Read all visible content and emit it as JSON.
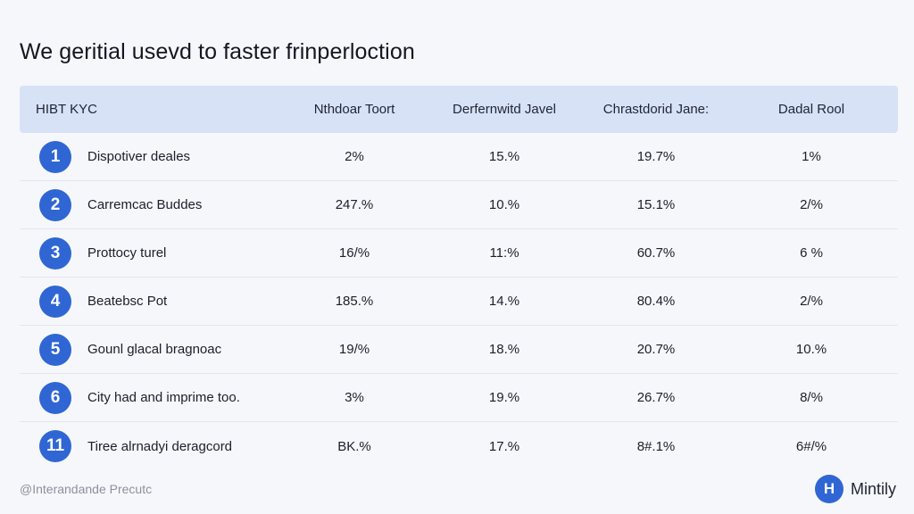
{
  "page": {
    "title": "We geritial usevd to faster frinperloction"
  },
  "table": {
    "headers": [
      "HIBT KYC",
      "Nthdoar Toort",
      "Derfernwitd Javel",
      "Chrastdorid Jane:",
      "Dadal Rool"
    ],
    "rows": [
      {
        "num": "1",
        "label": "Dispotiver deales",
        "cells": [
          "2%",
          "15.%",
          "19.7%",
          "1%"
        ]
      },
      {
        "num": "2",
        "label": "Carremcac Buddes",
        "cells": [
          "247.%",
          "10.%",
          "15.1%",
          "2/%"
        ]
      },
      {
        "num": "3",
        "label": "Prottocy turel",
        "cells": [
          "16/%",
          "11:%",
          "60.7%",
          "6 %"
        ]
      },
      {
        "num": "4",
        "label": "Beatebsc Pot",
        "cells": [
          "185.%",
          "14.%",
          "80.4%",
          "2/%"
        ]
      },
      {
        "num": "5",
        "label": "Gounl glacal bragnoac",
        "cells": [
          "19/%",
          "18.%",
          "20.7%",
          "10.%"
        ]
      },
      {
        "num": "6",
        "label": "City had and imprime too.",
        "cells": [
          "3%",
          "19.%",
          "26.7%",
          "8/%"
        ]
      },
      {
        "num": "11",
        "label": "Tiree alrnadyi deragcord",
        "cells": [
          "BK.%",
          "17.%",
          "8#.1%",
          "6#/%"
        ]
      }
    ]
  },
  "footer": {
    "left_text": "@Interandande Precutc",
    "brand_icon_letter": "H",
    "brand_name": "Mintily"
  },
  "colors": {
    "accent": "#2f66d4",
    "header_bg": "#d8e2f6",
    "page_bg": "#f6f7fa"
  }
}
